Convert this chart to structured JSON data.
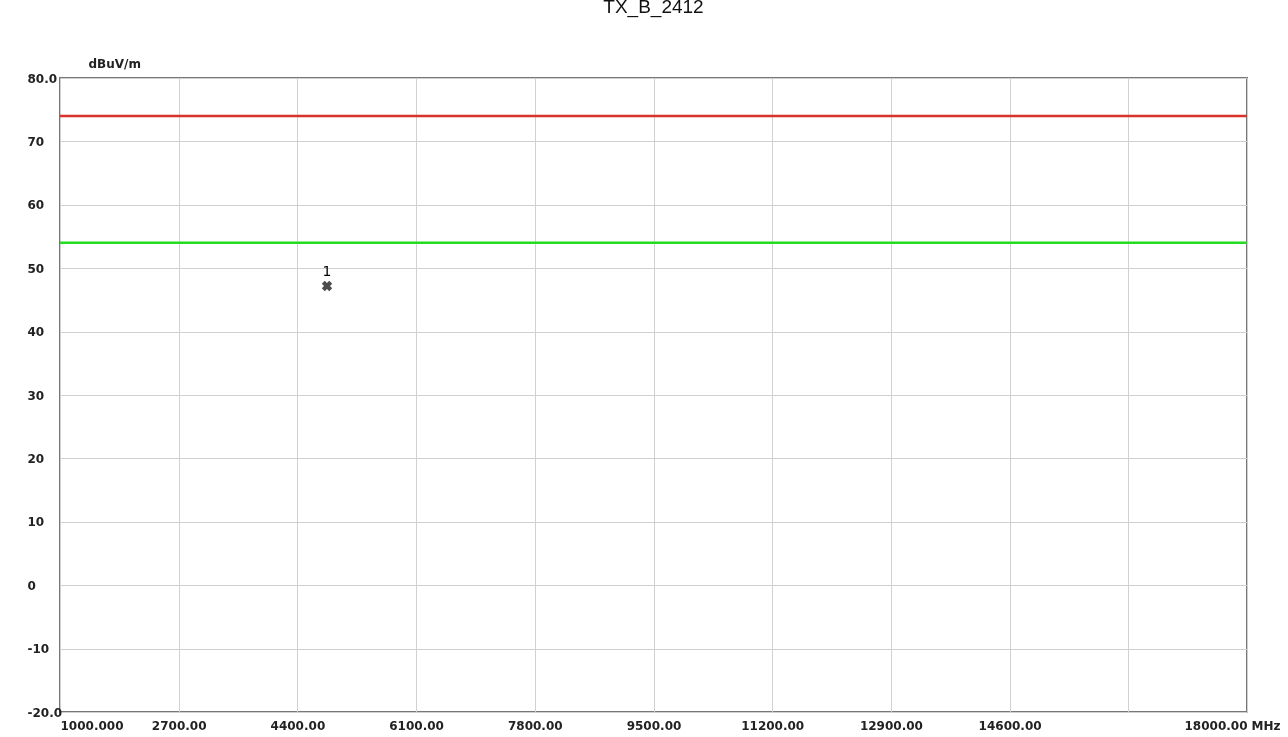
{
  "chart_data": {
    "type": "scatter",
    "title": "TX_B_2412",
    "xlabel": "MHz",
    "ylabel": "dBuV/m",
    "xlim": [
      1000,
      18000
    ],
    "ylim": [
      -20,
      80
    ],
    "xticks": [
      {
        "value": 1000,
        "label": "1000.000"
      },
      {
        "value": 2700,
        "label": "2700.00"
      },
      {
        "value": 4400,
        "label": "4400.00"
      },
      {
        "value": 6100,
        "label": "6100.00"
      },
      {
        "value": 7800,
        "label": "7800.00"
      },
      {
        "value": 9500,
        "label": "9500.00"
      },
      {
        "value": 11200,
        "label": "11200.00"
      },
      {
        "value": 12900,
        "label": "12900.00"
      },
      {
        "value": 14600,
        "label": "14600.00"
      },
      {
        "value": 16300,
        "label": null
      },
      {
        "value": 18000,
        "label": "18000.00"
      }
    ],
    "yticks": [
      {
        "value": -20,
        "label": "-20.0"
      },
      -10,
      0,
      10,
      20,
      30,
      40,
      50,
      60,
      70,
      {
        "value": 80,
        "label": "80.0"
      }
    ],
    "series": [
      {
        "color": "#000000",
        "x": [
          4824
        ],
        "values": [
          47.2
        ]
      }
    ],
    "marker": "cross",
    "grid": true,
    "ref_lines": [
      {
        "axis": "y",
        "value": 74,
        "color": "#d9342b"
      },
      {
        "axis": "y",
        "value": 54,
        "color": "#22dd22"
      }
    ],
    "annotations": [
      {
        "text": "1",
        "x": 4824,
        "y": 47.2
      }
    ]
  }
}
